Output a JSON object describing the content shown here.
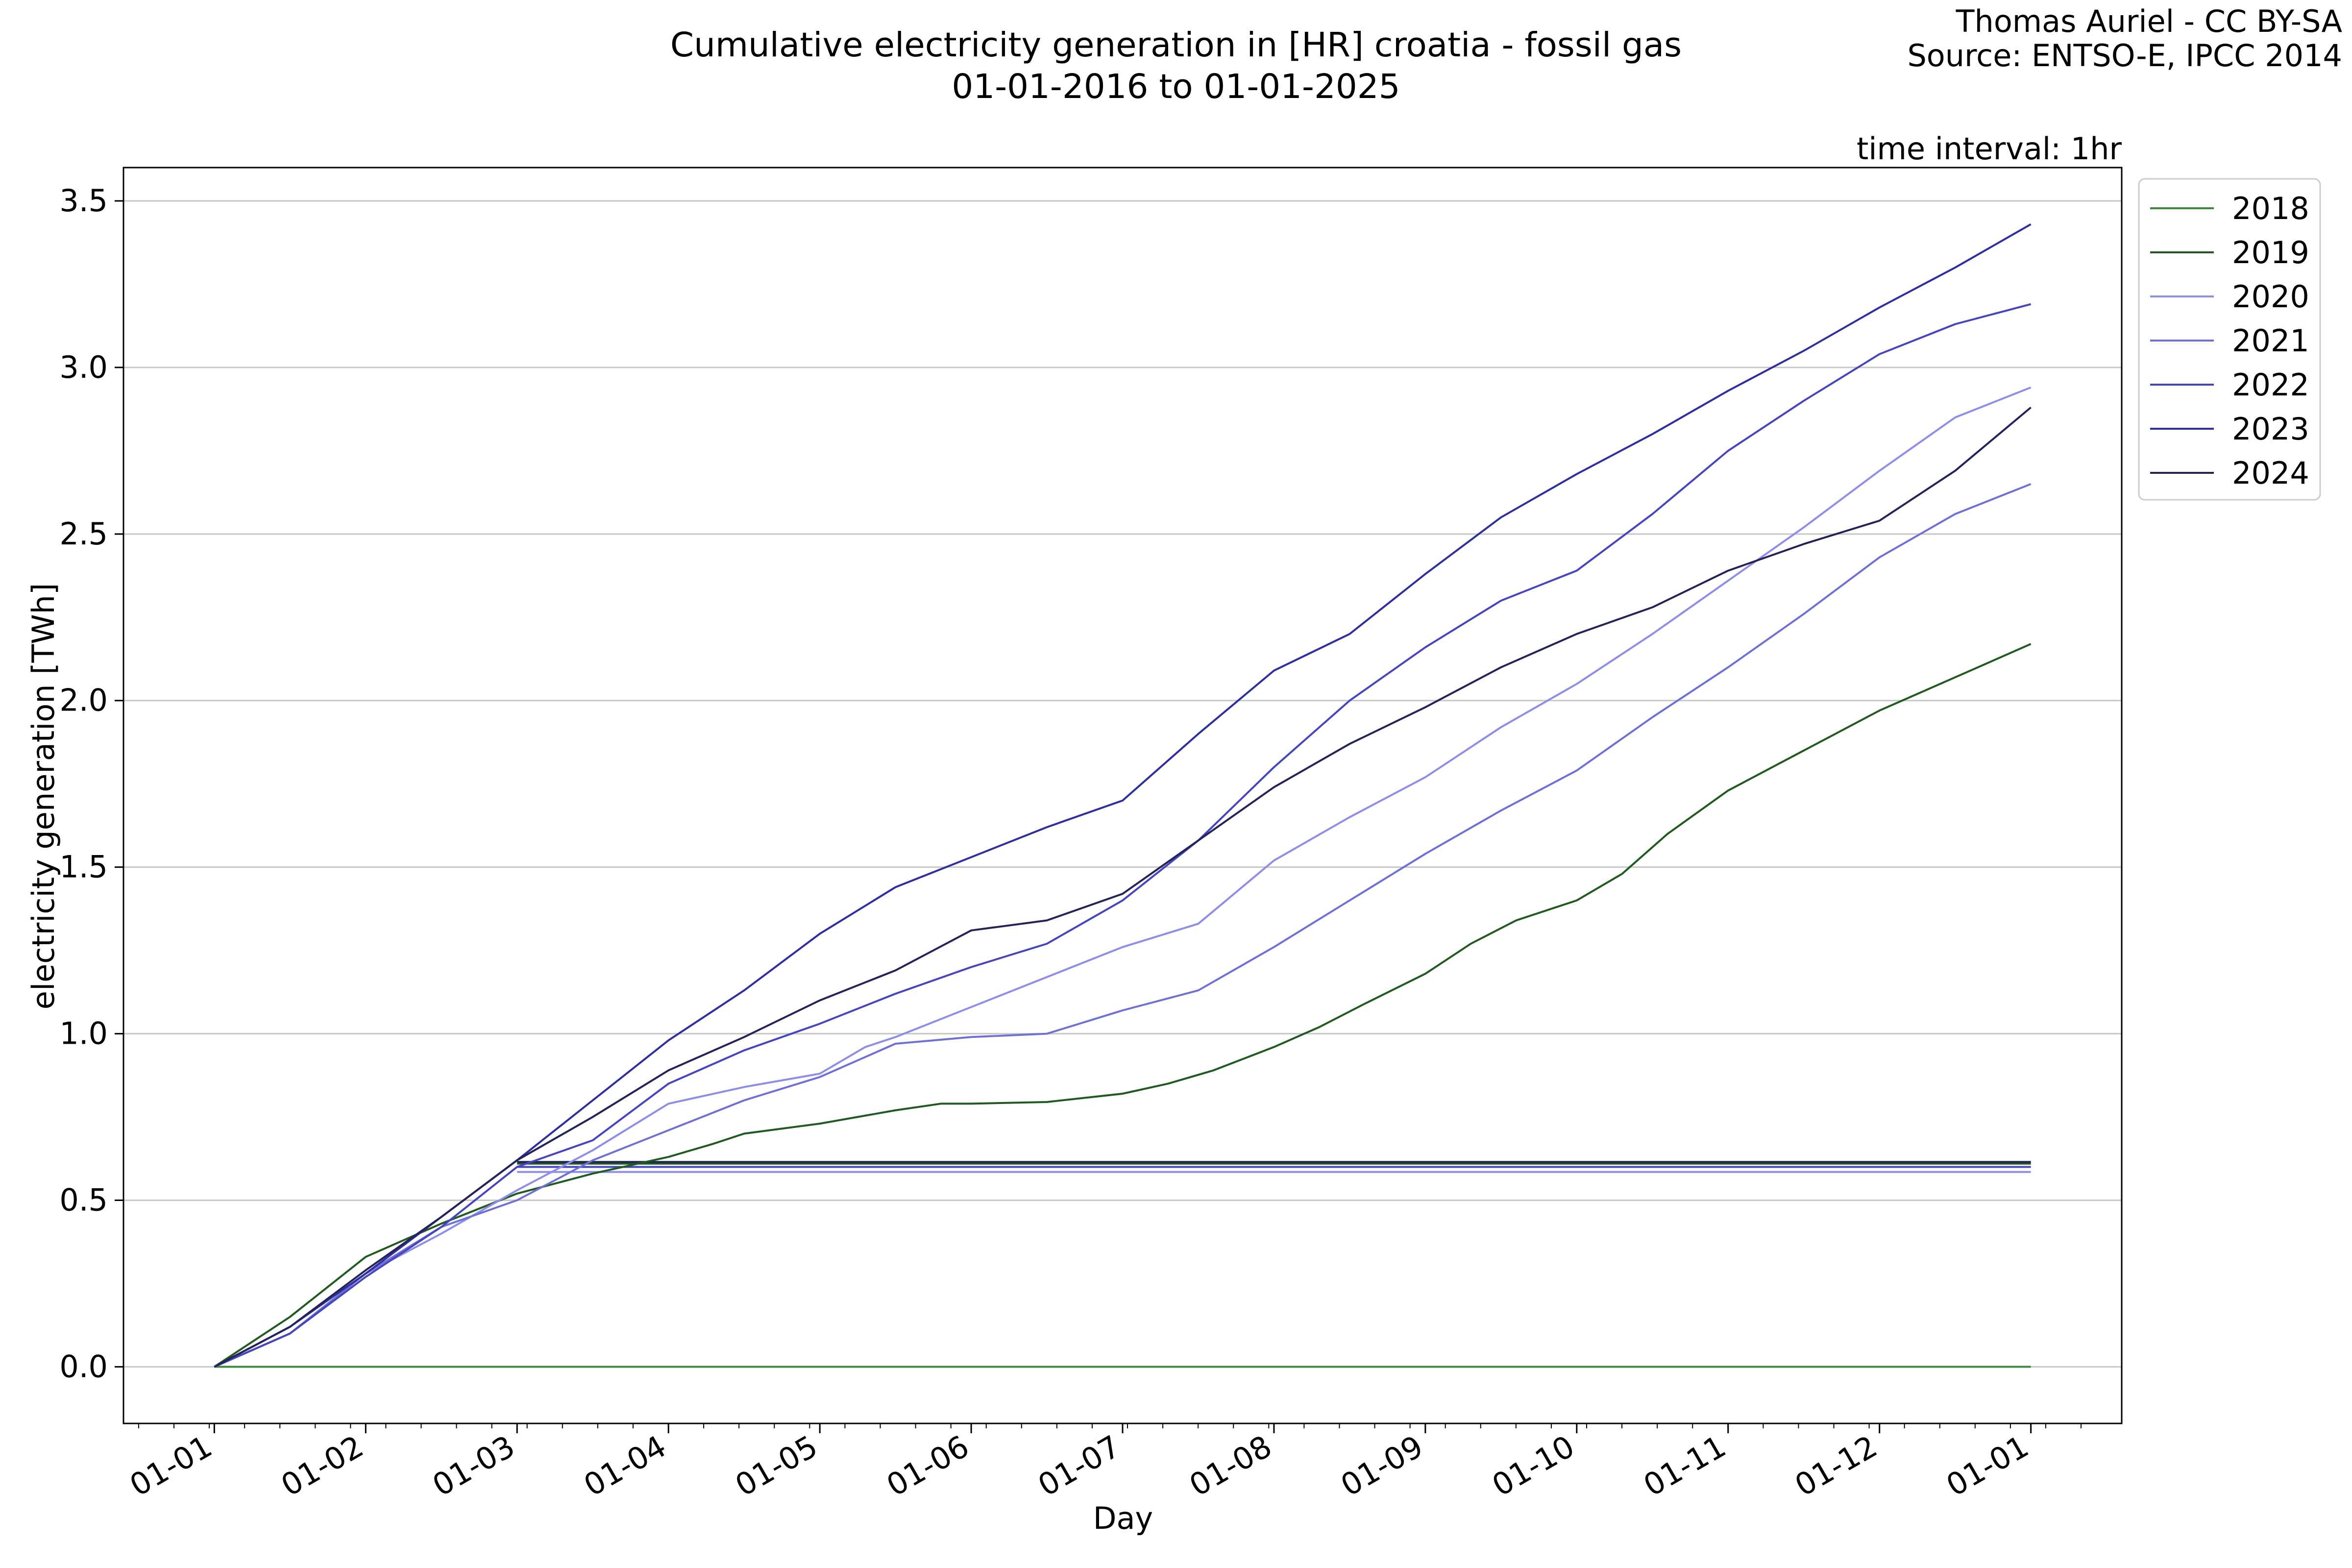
{
  "chart_data": {
    "type": "line",
    "title": "Cumulative electricity generation in [HR] croatia - fossil gas",
    "subtitle": "01-01-2016 to 01-01-2025",
    "credit": [
      "Thomas Auriel - CC BY-SA",
      "Source: ENTSO-E, IPCC 2014"
    ],
    "annotation": "time interval: 1hr",
    "xlabel": "Day",
    "ylabel": "electricity generation [TWh]",
    "x_unit": "month index from 01-01",
    "xlim": [
      -0.6,
      12.6
    ],
    "ylim": [
      -0.17,
      3.6
    ],
    "x_ticks": [
      {
        "x": 0,
        "label": "01-01"
      },
      {
        "x": 1,
        "label": "01-02"
      },
      {
        "x": 2,
        "label": "01-03"
      },
      {
        "x": 3,
        "label": "01-04"
      },
      {
        "x": 4,
        "label": "01-05"
      },
      {
        "x": 5,
        "label": "01-06"
      },
      {
        "x": 6,
        "label": "01-07"
      },
      {
        "x": 7,
        "label": "01-08"
      },
      {
        "x": 8,
        "label": "01-09"
      },
      {
        "x": 9,
        "label": "01-10"
      },
      {
        "x": 10,
        "label": "01-11"
      },
      {
        "x": 11,
        "label": "01-12"
      },
      {
        "x": 12,
        "label": "01-01"
      }
    ],
    "y_ticks": [
      {
        "y": 0.0,
        "label": "0.0"
      },
      {
        "y": 0.5,
        "label": "0.5"
      },
      {
        "y": 1.0,
        "label": "1.0"
      },
      {
        "y": 1.5,
        "label": "1.5"
      },
      {
        "y": 2.0,
        "label": "2.0"
      },
      {
        "y": 2.5,
        "label": "2.5"
      },
      {
        "y": 3.0,
        "label": "3.0"
      },
      {
        "y": 3.5,
        "label": "3.5"
      }
    ],
    "grid": "horizontal",
    "legend_position": "outside top-right",
    "series": [
      {
        "name": "2018",
        "color": "#3a8a3a",
        "points": [
          [
            0,
            0
          ],
          [
            12,
            0
          ]
        ]
      },
      {
        "name": "2019",
        "color": "#1f5a1f",
        "points": [
          [
            0,
            0
          ],
          [
            0.5,
            0.15
          ],
          [
            1,
            0.33
          ],
          [
            1.5,
            0.43
          ],
          [
            2,
            0.52
          ],
          [
            2.5,
            0.58
          ],
          [
            3,
            0.63
          ],
          [
            3.3,
            0.67
          ],
          [
            3.5,
            0.7
          ],
          [
            4,
            0.73
          ],
          [
            4.5,
            0.77
          ],
          [
            4.8,
            0.79
          ],
          [
            5,
            0.79
          ],
          [
            5.5,
            0.795
          ],
          [
            6,
            0.82
          ],
          [
            6.3,
            0.85
          ],
          [
            6.6,
            0.89
          ],
          [
            7,
            0.96
          ],
          [
            7.3,
            1.02
          ],
          [
            7.6,
            1.09
          ],
          [
            8,
            1.18
          ],
          [
            8.3,
            1.27
          ],
          [
            8.6,
            1.34
          ],
          [
            9,
            1.4
          ],
          [
            9.3,
            1.48
          ],
          [
            9.6,
            1.6
          ],
          [
            10,
            1.73
          ],
          [
            10.5,
            1.85
          ],
          [
            11,
            1.97
          ],
          [
            11.5,
            2.07
          ],
          [
            12,
            2.17
          ]
        ]
      },
      {
        "name": "2020",
        "color": "#8e8ee8",
        "points": [
          [
            0,
            0
          ],
          [
            0.5,
            0.1
          ],
          [
            1,
            0.28
          ],
          [
            1.5,
            0.4
          ],
          [
            2,
            0.53
          ],
          [
            2.5,
            0.65
          ],
          [
            3,
            0.79
          ],
          [
            3.5,
            0.84
          ],
          [
            4,
            0.88
          ],
          [
            4.3,
            0.96
          ],
          [
            4.5,
            0.99
          ],
          [
            5,
            1.08
          ],
          [
            5.5,
            1.17
          ],
          [
            6,
            1.26
          ],
          [
            6.5,
            1.33
          ],
          [
            7,
            1.52
          ],
          [
            7.5,
            1.65
          ],
          [
            8,
            1.77
          ],
          [
            8.5,
            1.92
          ],
          [
            9,
            2.05
          ],
          [
            9.5,
            2.2
          ],
          [
            10,
            2.36
          ],
          [
            10.5,
            2.52
          ],
          [
            11,
            2.69
          ],
          [
            11.5,
            2.85
          ],
          [
            12,
            2.94
          ]
        ]
      },
      {
        "name": "2021",
        "color": "#6f6fd8",
        "points": [
          [
            0,
            0
          ],
          [
            0.5,
            0.1
          ],
          [
            1,
            0.28
          ],
          [
            1.5,
            0.42
          ],
          [
            2,
            0.5
          ],
          [
            2.5,
            0.62
          ],
          [
            3,
            0.71
          ],
          [
            3.5,
            0.8
          ],
          [
            4,
            0.87
          ],
          [
            4.3,
            0.93
          ],
          [
            4.5,
            0.97
          ],
          [
            5,
            0.99
          ],
          [
            5.5,
            1.0
          ],
          [
            6,
            1.07
          ],
          [
            6.5,
            1.13
          ],
          [
            7,
            1.26
          ],
          [
            7.5,
            1.4
          ],
          [
            8,
            1.54
          ],
          [
            8.5,
            1.67
          ],
          [
            9,
            1.79
          ],
          [
            9.5,
            1.95
          ],
          [
            10,
            2.1
          ],
          [
            10.5,
            2.26
          ],
          [
            11,
            2.43
          ],
          [
            11.5,
            2.56
          ],
          [
            12,
            2.65
          ]
        ]
      },
      {
        "name": "2022",
        "color": "#4545c0",
        "points": [
          [
            0,
            0
          ],
          [
            0.5,
            0.1
          ],
          [
            1,
            0.27
          ],
          [
            1.5,
            0.42
          ],
          [
            2,
            0.6
          ],
          [
            2.5,
            0.68
          ],
          [
            3,
            0.85
          ],
          [
            3.5,
            0.95
          ],
          [
            4,
            1.03
          ],
          [
            4.5,
            1.12
          ],
          [
            5,
            1.2
          ],
          [
            5.5,
            1.27
          ],
          [
            6,
            1.4
          ],
          [
            6.5,
            1.58
          ],
          [
            7,
            1.8
          ],
          [
            7.5,
            2.0
          ],
          [
            8,
            2.16
          ],
          [
            8.5,
            2.3
          ],
          [
            9,
            2.39
          ],
          [
            9.5,
            2.56
          ],
          [
            10,
            2.75
          ],
          [
            10.5,
            2.9
          ],
          [
            11,
            3.04
          ],
          [
            11.5,
            3.13
          ],
          [
            12,
            3.19
          ]
        ]
      },
      {
        "name": "2023",
        "color": "#2e2ea0",
        "points": [
          [
            0,
            0
          ],
          [
            0.5,
            0.12
          ],
          [
            1,
            0.28
          ],
          [
            1.5,
            0.45
          ],
          [
            2,
            0.62
          ],
          [
            2.5,
            0.8
          ],
          [
            3,
            0.98
          ],
          [
            3.5,
            1.13
          ],
          [
            4,
            1.3
          ],
          [
            4.5,
            1.44
          ],
          [
            5,
            1.53
          ],
          [
            5.5,
            1.62
          ],
          [
            6,
            1.7
          ],
          [
            6.5,
            1.9
          ],
          [
            7,
            2.09
          ],
          [
            7.5,
            2.2
          ],
          [
            8,
            2.38
          ],
          [
            8.5,
            2.55
          ],
          [
            9,
            2.68
          ],
          [
            9.5,
            2.8
          ],
          [
            10,
            2.93
          ],
          [
            10.5,
            3.05
          ],
          [
            11,
            3.18
          ],
          [
            11.5,
            3.3
          ],
          [
            12,
            3.43
          ]
        ]
      },
      {
        "name": "2024",
        "color": "#23235a",
        "points": [
          [
            0,
            0
          ],
          [
            0.5,
            0.12
          ],
          [
            1,
            0.29
          ],
          [
            1.5,
            0.45
          ],
          [
            2,
            0.62
          ],
          [
            2.5,
            0.75
          ],
          [
            3,
            0.89
          ],
          [
            3.5,
            0.99
          ],
          [
            4,
            1.1
          ],
          [
            4.5,
            1.19
          ],
          [
            5,
            1.31
          ],
          [
            5.5,
            1.34
          ],
          [
            6,
            1.42
          ],
          [
            6.5,
            1.58
          ],
          [
            7,
            1.74
          ],
          [
            7.5,
            1.87
          ],
          [
            8,
            1.98
          ],
          [
            8.5,
            2.1
          ],
          [
            9,
            2.2
          ],
          [
            9.5,
            2.28
          ],
          [
            10,
            2.39
          ],
          [
            10.5,
            2.47
          ],
          [
            11,
            2.54
          ],
          [
            11.5,
            2.69
          ],
          [
            12,
            2.88
          ]
        ]
      }
    ],
    "flat_series_lines": [
      {
        "color": "#3a8a3a",
        "x": [
          2,
          12
        ],
        "y": 0.615
      },
      {
        "color": "#1f5a1f",
        "x": [
          2,
          12
        ],
        "y": 0.61
      },
      {
        "color": "#8e8ee8",
        "x": [
          2,
          12
        ],
        "y": 0.585
      },
      {
        "color": "#4545c0",
        "x": [
          2,
          12
        ],
        "y": 0.6
      },
      {
        "color": "#23235a",
        "x": [
          2,
          12
        ],
        "y": 0.615
      }
    ]
  }
}
